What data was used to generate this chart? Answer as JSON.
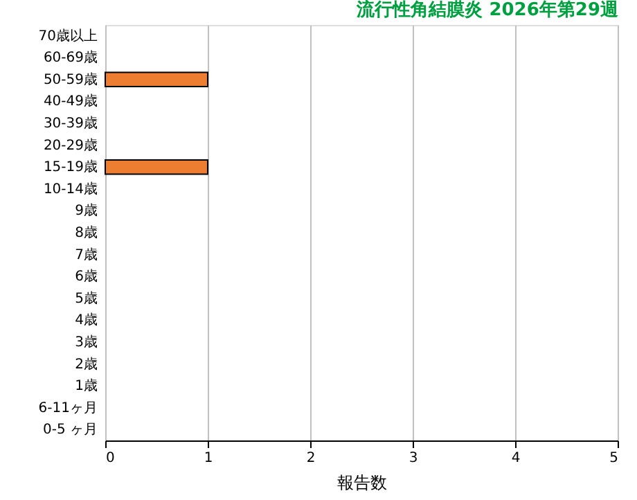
{
  "chart_data": {
    "type": "bar",
    "orientation": "horizontal",
    "title": "流行性角結膜炎 2026年第29週",
    "xlabel": "報告数",
    "categories": [
      "70歳以上",
      "60-69歳",
      "50-59歳",
      "40-49歳",
      "30-39歳",
      "20-29歳",
      "15-19歳",
      "10-14歳",
      "9歳",
      "8歳",
      "7歳",
      "6歳",
      "5歳",
      "4歳",
      "3歳",
      "2歳",
      "1歳",
      "6-11ヶ月",
      "0-5 ヶ月"
    ],
    "values": [
      0,
      0,
      1,
      0,
      0,
      0,
      1,
      0,
      0,
      0,
      0,
      0,
      0,
      0,
      0,
      0,
      0,
      0,
      0
    ],
    "color": "#ed7d31",
    "xlim": [
      0,
      5
    ],
    "xticks": [
      0,
      1,
      2,
      3,
      4,
      5
    ],
    "grid": "x"
  }
}
